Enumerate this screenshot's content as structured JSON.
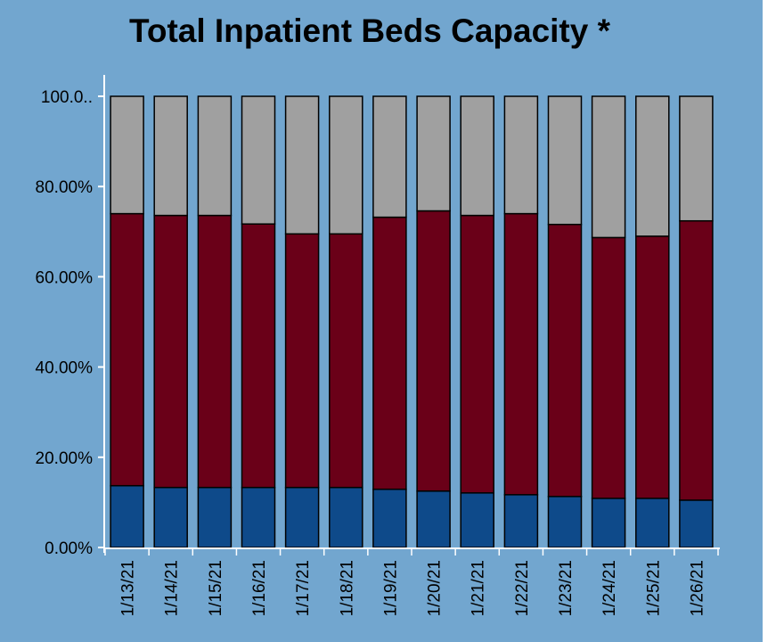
{
  "chart_data": {
    "type": "bar",
    "stacked": true,
    "percent": true,
    "title": "Total Inpatient Beds Capacity *",
    "xlabel": "",
    "ylabel": "",
    "ylim": [
      0,
      100
    ],
    "y_ticks": [
      "0.00%",
      "20.00%",
      "40.00%",
      "60.00%",
      "80.00%",
      "100.0.."
    ],
    "categories": [
      "1/13/21",
      "1/14/21",
      "1/15/21",
      "1/16/21",
      "1/17/21",
      "1/18/21",
      "1/19/21",
      "1/20/21",
      "1/21/21",
      "1/22/21",
      "1/23/21",
      "1/24/21",
      "1/25/21",
      "1/26/21"
    ],
    "series": [
      {
        "color": "#0e4a8a",
        "values": [
          13.7,
          13.3,
          13.3,
          13.3,
          13.3,
          13.3,
          12.9,
          12.5,
          12.1,
          11.7,
          11.3,
          10.9,
          10.9,
          10.5
        ]
      },
      {
        "color": "#6a0018",
        "values": [
          60.3,
          60.3,
          60.3,
          58.4,
          56.2,
          56.2,
          60.3,
          62.1,
          61.5,
          62.3,
          60.3,
          57.8,
          58.1,
          61.9
        ]
      },
      {
        "color": "#a0a0a0",
        "values": [
          26.0,
          26.4,
          26.4,
          28.3,
          30.5,
          30.5,
          26.8,
          25.4,
          26.4,
          26.0,
          28.4,
          31.3,
          31.0,
          27.6
        ]
      }
    ],
    "legend": "none",
    "grid": false
  }
}
